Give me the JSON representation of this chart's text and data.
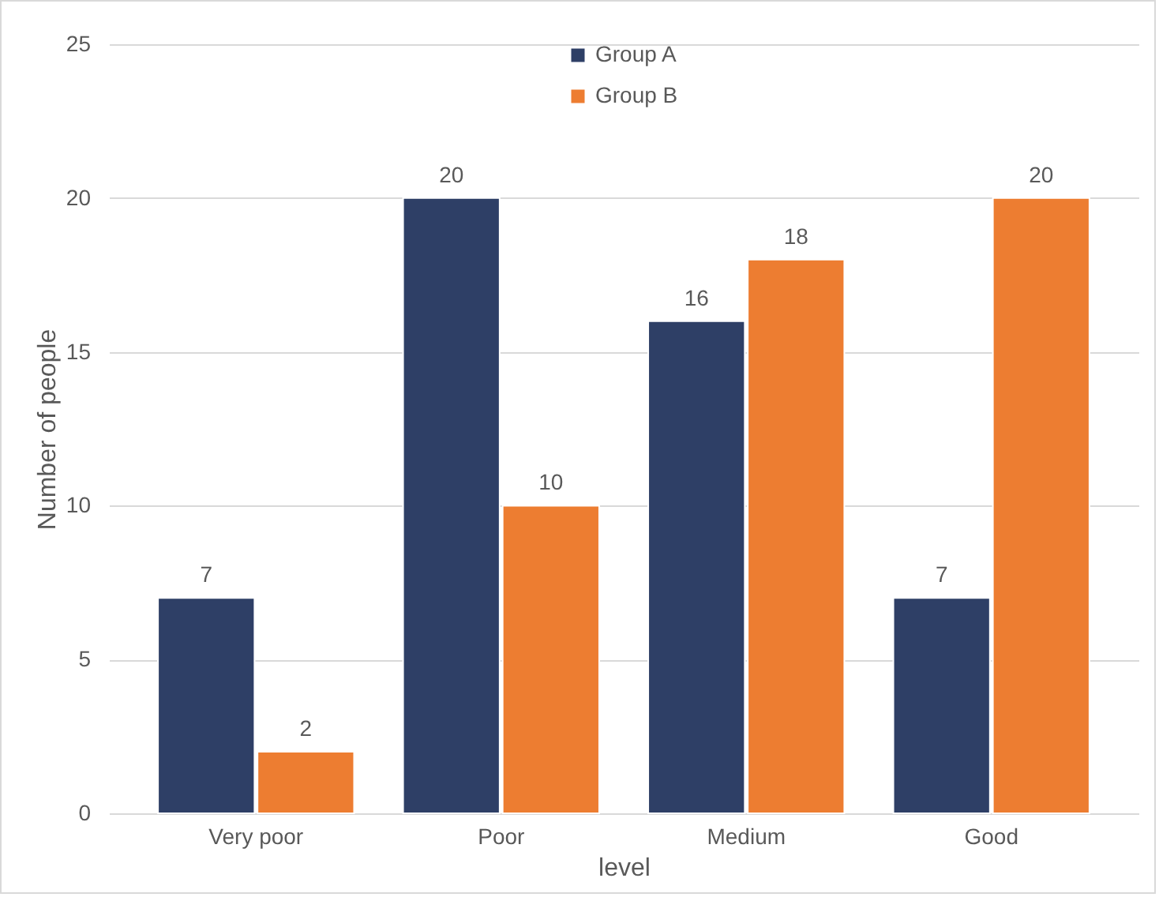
{
  "chart_data": {
    "type": "bar",
    "xlabel": "level",
    "ylabel": "Number of people",
    "categories": [
      "Very poor",
      "Poor",
      "Medium",
      "Good"
    ],
    "series": [
      {
        "name": "Group A",
        "color": "#2e3f66",
        "values": [
          7,
          20,
          16,
          7
        ]
      },
      {
        "name": "Group B",
        "color": "#ed7d31",
        "values": [
          2,
          10,
          18,
          20
        ]
      }
    ],
    "ylim": [
      0,
      25
    ],
    "yticks": [
      0,
      5,
      10,
      15,
      20,
      25
    ],
    "grid": "y",
    "legend": "top",
    "data_labels": true
  }
}
